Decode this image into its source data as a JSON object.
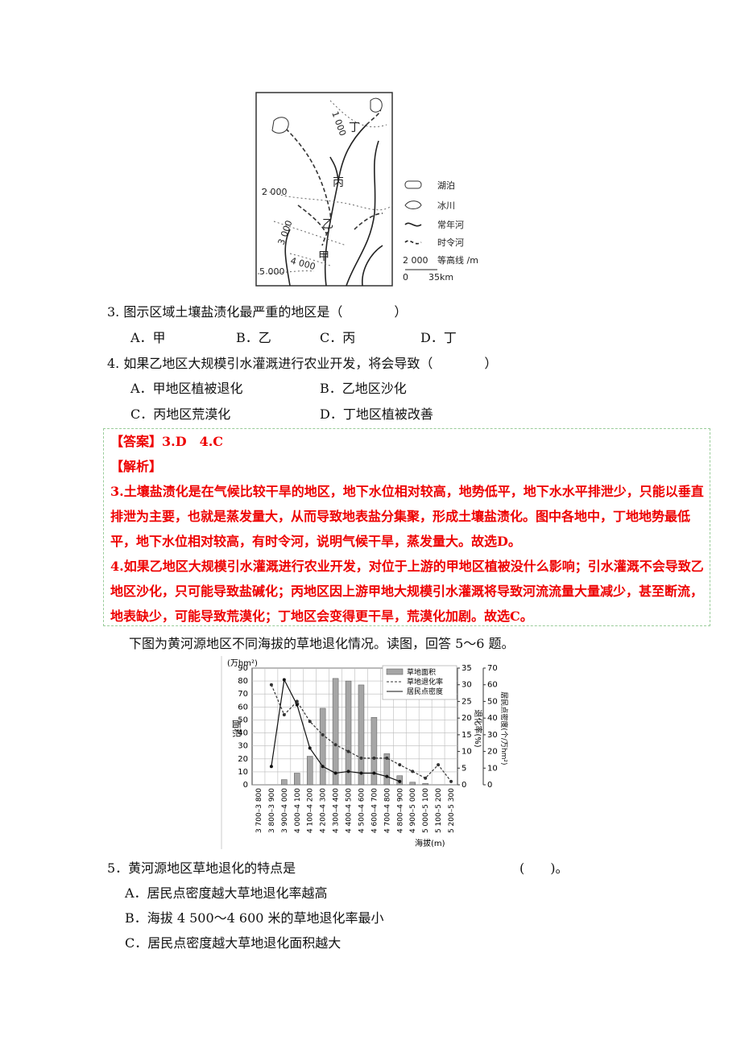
{
  "map": {
    "contours": [
      "1 000",
      "2 000",
      "3 000",
      "4 000",
      "5 000"
    ],
    "places": [
      "甲",
      "乙",
      "丙",
      "丁"
    ],
    "legend": [
      "湖泊",
      "冰川",
      "常年河",
      "时令河",
      "等高线 /m"
    ],
    "legend_contour_sample": "2 000",
    "scale": [
      "0",
      "35km"
    ]
  },
  "questions": [
    {
      "stem": "3. 图示区域土壤盐渍化最严重的地区是（　　　　）",
      "options": [
        "A．甲",
        "B．乙",
        "C．丙",
        "D．丁"
      ]
    },
    {
      "stem": "4. 如果乙地区大规模引水灌溉进行农业开发，将会导致（　　　　）",
      "options": [
        "A．甲地区植被退化",
        "B．乙地区沙化",
        "C．丙地区荒漠化",
        "D．丁地区植被改善"
      ]
    }
  ],
  "answer": {
    "label": "【答案】",
    "text": "3.D　4.C",
    "analysis_label": "【解析】",
    "paragraphs": [
      "3.土壤盐渍化是在气候比较干旱的地区，地下水位相对较高，地势低平，地下水水平排泄少，只能以垂直排泄为主要，也就是蒸发量大，从而导致地表盐分集聚，形成土壤盐渍化。图中各地中，丁地地势最低平，地下水位相对较高，有时令河，说明气候干旱，蒸发量大。故选D。",
      "4.如果乙地区大规模引水灌溉进行农业开发，对位于上游的甲地区植被没什么影响；引水灌溉不会导致乙地区沙化，只可能导致盐碱化；丙地区因上游甲地大规模引水灌溉将导致河流流量大量减少，甚至断流，地表缺少，可能导致荒漠化；丁地区会变得更干旱，荒漠化加剧。故选C。"
    ]
  },
  "intro": "下图为黄河源地区不同海拔的草地退化情况。读图，回答 5～6 题。",
  "chart_data": {
    "type": "bar-line",
    "y_unit": "(万hm²)",
    "y_label": "面积",
    "y2_label": "退化率(%)",
    "y3_label": "居民点密度(个/万hm²)",
    "x_label": "海拔(m)",
    "categories": [
      "3 700–3 800",
      "3 800–3 900",
      "3 900–4 000",
      "4 000–4 100",
      "4 100–4 200",
      "4 200–4 300",
      "4 300–4 400",
      "4 400–4 500",
      "4 500–4 600",
      "4 600–4 700",
      "4 700–4 800",
      "4 800–4 900",
      "4 900–5 000",
      "5 000–5 100",
      "5 100–5 200",
      "5 200–5 300"
    ],
    "series": [
      {
        "name": "草地面积",
        "kind": "bar",
        "color": "#a6a6a6",
        "axis": "y",
        "values": [
          0,
          0,
          4,
          9,
          22,
          59,
          82,
          80,
          77,
          52,
          24,
          7,
          2,
          1,
          0,
          0
        ]
      },
      {
        "name": "草地退化率",
        "kind": "dashed-line",
        "color": "#333333",
        "axis": "y2",
        "values": [
          null,
          30,
          21,
          25,
          19,
          15,
          12,
          10,
          8,
          8,
          8,
          6,
          4,
          2,
          6,
          1
        ]
      },
      {
        "name": "居民点密度",
        "kind": "line",
        "color": "#111111",
        "axis": "y3",
        "values": [
          null,
          11,
          63,
          48,
          22,
          11,
          7,
          8,
          7,
          7,
          5,
          2,
          null,
          null,
          null,
          null
        ]
      }
    ],
    "ylim": [
      0,
      90
    ],
    "yticks": [
      0,
      10,
      20,
      30,
      40,
      50,
      60,
      70,
      80,
      90
    ],
    "y2lim": [
      0,
      35
    ],
    "y2ticks": [
      0,
      5,
      10,
      15,
      20,
      25,
      30,
      35
    ],
    "y3lim": [
      0,
      70
    ],
    "y3ticks": [
      0,
      10,
      20,
      30,
      40,
      50,
      60,
      70
    ],
    "grid": true
  },
  "question5": {
    "stem": "5．黄河源地区草地退化的特点是",
    "blank": "(　　)。",
    "options": [
      "A．居民点密度越大草地退化率越高",
      "B．海拔 4 500～4 600 米的草地退化率最小",
      "C．居民点密度越大草地退化面积越大"
    ]
  }
}
